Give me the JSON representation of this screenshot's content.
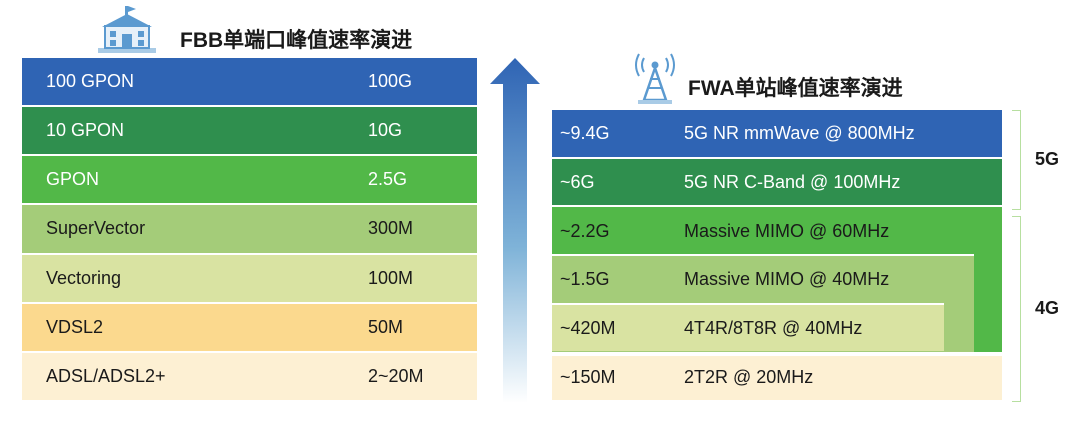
{
  "fbb": {
    "title": "FBB单端口峰值速率演进",
    "rows": [
      {
        "name": "100 GPON",
        "speed": "100G",
        "bg": "#2f64b4",
        "fg": "#ffffff"
      },
      {
        "name": "10 GPON",
        "speed": "10G",
        "bg": "#2f8f4e",
        "fg": "#ffffff"
      },
      {
        "name": "GPON",
        "speed": "2.5G",
        "bg": "#52b848",
        "fg": "#ffffff"
      },
      {
        "name": "SuperVector",
        "speed": "300M",
        "bg": "#a4cc79",
        "fg": "#1a1a1a"
      },
      {
        "name": "Vectoring",
        "speed": "100M",
        "bg": "#d9e3a2",
        "fg": "#1a1a1a"
      },
      {
        "name": "VDSL2",
        "speed": "50M",
        "bg": "#fbd98e",
        "fg": "#1a1a1a"
      },
      {
        "name": "ADSL/ADSL2+",
        "speed": "2~20M",
        "bg": "#fdf0d3",
        "fg": "#1a1a1a"
      }
    ]
  },
  "fwa": {
    "title": "FWA单站峰值速率演进",
    "rows": [
      {
        "speed": "~9.4G",
        "tech": "5G NR mmWave @ 800MHz",
        "bg": "#2f64b4",
        "fg": "#ffffff"
      },
      {
        "speed": "~6G",
        "tech": "5G NR C-Band @ 100MHz",
        "bg": "#2f8f4e",
        "fg": "#ffffff"
      },
      {
        "speed": "~2.2G",
        "tech": "Massive MIMO @ 60MHz",
        "bg": "#52b848",
        "fg": "#1a1a1a"
      },
      {
        "speed": "~1.5G",
        "tech": "Massive MIMO @ 40MHz",
        "bg": "#a4cc79",
        "fg": "#1a1a1a"
      },
      {
        "speed": "~420M",
        "tech": "4T4R/8T8R @ 40MHz",
        "bg": "#d9e3a2",
        "fg": "#1a1a1a"
      },
      {
        "speed": "~150M",
        "tech": "2T2R @ 20MHz",
        "bg": "#fdf0d3",
        "fg": "#1a1a1a"
      }
    ],
    "groups": {
      "g5": "5G",
      "g4": "4G"
    }
  },
  "colors": {
    "arrow_top": "#2f64b4",
    "arrow_bottom": "#ffffff",
    "bracket": "#b7dfa0"
  },
  "icons": {
    "building": "building-icon",
    "tower": "radio-tower-icon"
  }
}
